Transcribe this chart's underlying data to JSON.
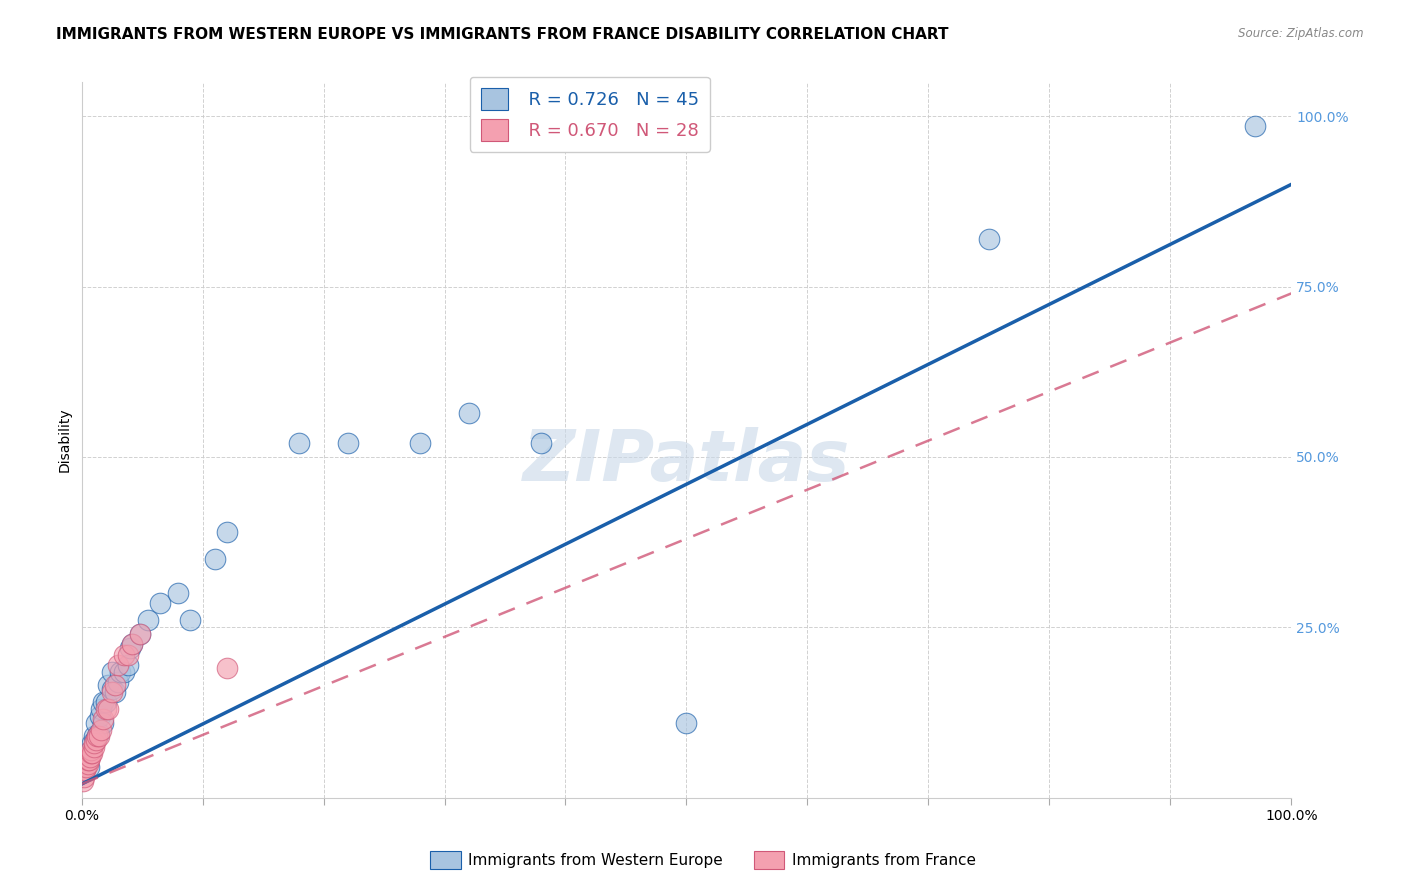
{
  "title": "IMMIGRANTS FROM WESTERN EUROPE VS IMMIGRANTS FROM FRANCE DISABILITY CORRELATION CHART",
  "source": "Source: ZipAtlas.com",
  "xlabel": "",
  "ylabel": "Disability",
  "watermark": "ZIPatlas",
  "blue_label": "Immigrants from Western Europe",
  "pink_label": "Immigrants from France",
  "blue_R": 0.726,
  "blue_N": 45,
  "pink_R": 0.67,
  "pink_N": 28,
  "blue_color": "#a8c4e0",
  "pink_color": "#f4a0b0",
  "blue_line_color": "#1a5faa",
  "pink_line_color": "#d05878",
  "background_color": "#ffffff",
  "grid_color": "#cccccc",
  "title_fontsize": 11,
  "axis_label_fontsize": 10,
  "tick_fontsize": 10,
  "legend_fontsize": 13,
  "watermark_fontsize": 52,
  "watermark_color": "#c8d8e8",
  "right_ytick_color": "#5599dd",
  "xlim": [
    0.0,
    1.0
  ],
  "ylim": [
    0.0,
    1.05
  ],
  "blue_line_intercept": 0.02,
  "blue_line_slope": 0.88,
  "pink_line_intercept": 0.02,
  "pink_line_slope": 0.72,
  "blue_x": [
    0.002,
    0.003,
    0.003,
    0.004,
    0.005,
    0.006,
    0.006,
    0.007,
    0.008,
    0.009,
    0.01,
    0.011,
    0.012,
    0.013,
    0.014,
    0.015,
    0.016,
    0.018,
    0.018,
    0.02,
    0.022,
    0.025,
    0.025,
    0.028,
    0.03,
    0.032,
    0.035,
    0.038,
    0.04,
    0.042,
    0.048,
    0.055,
    0.065,
    0.08,
    0.09,
    0.11,
    0.12,
    0.18,
    0.22,
    0.28,
    0.32,
    0.38,
    0.5,
    0.75,
    0.97
  ],
  "blue_y": [
    0.04,
    0.05,
    0.055,
    0.05,
    0.055,
    0.06,
    0.045,
    0.065,
    0.07,
    0.08,
    0.09,
    0.085,
    0.11,
    0.09,
    0.095,
    0.12,
    0.13,
    0.11,
    0.14,
    0.14,
    0.165,
    0.16,
    0.185,
    0.155,
    0.17,
    0.185,
    0.185,
    0.195,
    0.22,
    0.225,
    0.24,
    0.26,
    0.285,
    0.3,
    0.26,
    0.35,
    0.39,
    0.52,
    0.52,
    0.52,
    0.565,
    0.52,
    0.11,
    0.82,
    0.985
  ],
  "pink_x": [
    0.001,
    0.002,
    0.003,
    0.004,
    0.005,
    0.005,
    0.006,
    0.007,
    0.008,
    0.008,
    0.009,
    0.01,
    0.01,
    0.012,
    0.013,
    0.014,
    0.016,
    0.018,
    0.02,
    0.022,
    0.025,
    0.028,
    0.03,
    0.035,
    0.038,
    0.042,
    0.048,
    0.12
  ],
  "pink_y": [
    0.025,
    0.03,
    0.04,
    0.045,
    0.05,
    0.055,
    0.055,
    0.06,
    0.065,
    0.07,
    0.065,
    0.075,
    0.08,
    0.085,
    0.09,
    0.09,
    0.1,
    0.115,
    0.13,
    0.13,
    0.155,
    0.165,
    0.195,
    0.21,
    0.21,
    0.225,
    0.24,
    0.19
  ]
}
